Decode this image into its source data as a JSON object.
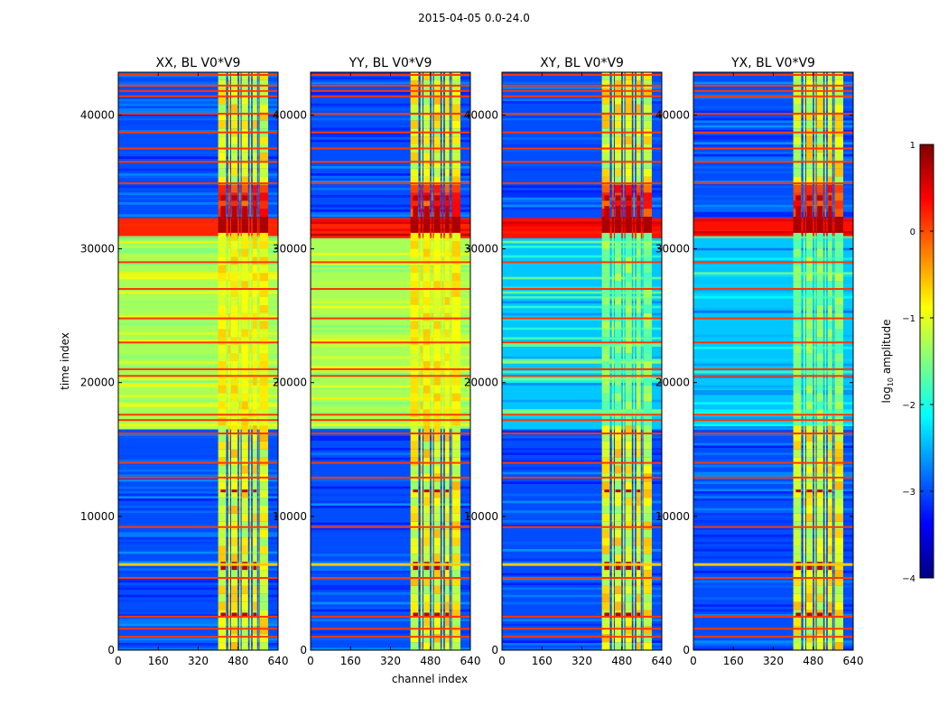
{
  "figure": {
    "suptitle": "2015-04-05 0.0-24.0",
    "xlabel": "channel index",
    "ylabel": "time index"
  },
  "chart_data": {
    "type": "heatmap",
    "title": "2015-04-05 0.0-24.0",
    "xlabel": "channel index",
    "ylabel": "time index",
    "xlim": [
      0,
      640
    ],
    "ylim": [
      0,
      43200
    ],
    "xticks": [
      0,
      160,
      320,
      480,
      640
    ],
    "yticks": [
      0,
      10000,
      20000,
      30000,
      40000
    ],
    "panels": [
      {
        "title": "XX, BL V0*V9",
        "pol": "XX"
      },
      {
        "title": "YY, BL V0*V9",
        "pol": "YY"
      },
      {
        "title": "XY, BL V0*V9",
        "pol": "XY"
      },
      {
        "title": "YX, BL V0*V9",
        "pol": "YX"
      }
    ],
    "colorbar": {
      "label": "log10 amplitude",
      "label_base": "log",
      "label_sub": "10",
      "label_rest": " amplitude",
      "vmin": -4,
      "vmax": 1,
      "ticks": [
        1,
        0,
        -1,
        -2,
        -3,
        -4
      ],
      "tick_labels": [
        "1",
        "0",
        "−1",
        "−2",
        "−3",
        "−4"
      ],
      "colormap": "jet",
      "colors": [
        "#00007f",
        "#0000ff",
        "#007fff",
        "#00ffff",
        "#7fff7f",
        "#ffff00",
        "#ff7f00",
        "#ff0000",
        "#7f0000"
      ]
    }
  }
}
